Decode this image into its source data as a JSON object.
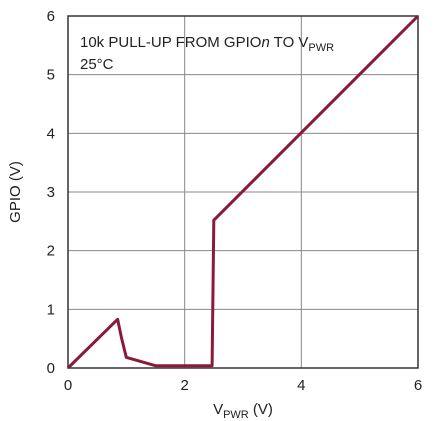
{
  "chart_data": {
    "type": "line",
    "annotation": {
      "line1_prefix": "10k PULL-UP FROM GPIO",
      "line1_italic": "n",
      "line1_mid": " TO V",
      "line1_sub": "PWR",
      "line2": "25°C"
    },
    "xlabel": {
      "main": "V",
      "sub": "PWR",
      "unit": " (V)"
    },
    "ylabel": "GPIO (V)",
    "xlim": [
      0,
      6
    ],
    "ylim": [
      0,
      6
    ],
    "x_ticks": [
      0,
      2,
      4,
      6
    ],
    "y_ticks": [
      0,
      1,
      2,
      3,
      4,
      5,
      6
    ],
    "grid": true,
    "series": [
      {
        "color": "#8b1a3a",
        "x": [
          0,
          0.85,
          0.92,
          1.0,
          1.5,
          2.47,
          2.5,
          6.0
        ],
        "y": [
          0,
          0.83,
          0.5,
          0.18,
          0.04,
          0.04,
          2.52,
          6.0
        ]
      }
    ]
  }
}
